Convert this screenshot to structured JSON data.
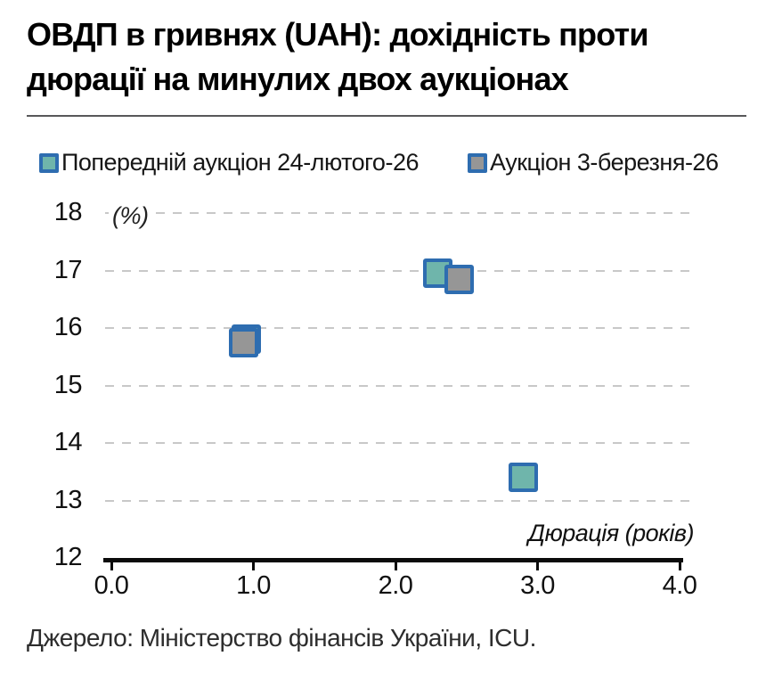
{
  "title": {
    "line1": "ОВДП в гривнях (UAH): дохідність проти",
    "line2": "дюрації на минулих двох аукціонах"
  },
  "source": "Джерело: Міністерство фінансів України, ICU.",
  "colors": {
    "marker_stroke": "#2E6DB0",
    "series1_fill": "#6FB5AB",
    "series2_fill": "#969696",
    "gridline": "#c8c8c8",
    "axis": "#0b0b0b"
  },
  "chart_data": {
    "type": "scatter",
    "title": "ОВДП в гривнях (UAH): дохідність проти дюрації на минулих двох аукціонах",
    "xlabel": "Дюрація (років)",
    "ylabel": "(%)",
    "xlim": [
      0,
      4
    ],
    "ylim": [
      12,
      18
    ],
    "xticks": [
      0,
      1,
      2,
      3,
      4
    ],
    "xtick_labels": [
      "0.0",
      "1.0",
      "2.0",
      "3.0",
      "4.0"
    ],
    "yticks": [
      18,
      17,
      16,
      15,
      14,
      13,
      12
    ],
    "grid": "horizontal-dashed",
    "legend_position": "top",
    "marker": "square",
    "series": [
      {
        "name": "Попередній аукціон 24-лютого-26",
        "fill": "#6FB5AB",
        "stroke": "#2E6DB0",
        "points": [
          {
            "x": 0.95,
            "y": 15.8
          },
          {
            "x": 2.3,
            "y": 16.95
          },
          {
            "x": 2.9,
            "y": 13.4
          }
        ]
      },
      {
        "name": "Аукціон 3-березня-26",
        "fill": "#969696",
        "stroke": "#2E6DB0",
        "points": [
          {
            "x": 0.93,
            "y": 15.75
          },
          {
            "x": 2.45,
            "y": 16.85
          }
        ]
      }
    ]
  }
}
